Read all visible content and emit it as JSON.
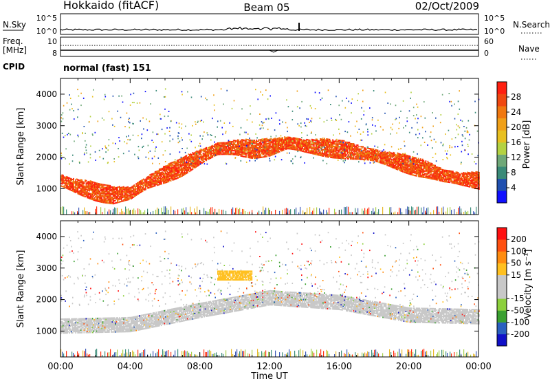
{
  "header": {
    "station": "Hokkaido (fitACF)",
    "beam": "Beam 05",
    "date": "02/Oct/2009"
  },
  "nsky": {
    "label": "N.Sky",
    "ticks": [
      "10^5",
      "10^0"
    ],
    "right_ticks": [
      "10^5",
      "10^0"
    ],
    "right_label": "N.Search"
  },
  "freq": {
    "label_top": "Freq.",
    "label_bottom": "[MHz]",
    "ticks": [
      "10",
      "8"
    ],
    "right_ticks": [
      "60",
      "0"
    ],
    "right_label": "Nave"
  },
  "cpid": {
    "label": "CPID",
    "value": "normal (fast) 151"
  },
  "colors": {
    "power_scale": [
      "#1010ff",
      "#2050b0",
      "#3a8a78",
      "#6fa878",
      "#b4d242",
      "#e8c020",
      "#f0a018",
      "#f07810",
      "#f04810",
      "#ff2010"
    ],
    "velocity_scale": [
      "#ff1010",
      "#ff5010",
      "#ff8c10",
      "#ffc020",
      "#c8c8c8",
      "#c8c8c8",
      "#8cd03c",
      "#3aa030",
      "#2a60c0",
      "#1010c8"
    ],
    "noise": [
      "#3c58b8",
      "#3f8f7c",
      "#a7d04c",
      "#e8b828",
      "#ff3010"
    ]
  },
  "chart_data": [
    {
      "type": "heatmap",
      "name": "Power",
      "ylabel": "Slant Range [km]",
      "xlabel": "",
      "x_ticks": [
        "00:00",
        "04:00",
        "08:00",
        "12:00",
        "16:00",
        "20:00",
        "00:00"
      ],
      "x_range_hours": [
        0,
        24
      ],
      "y_ticks": [
        1000,
        2000,
        3000,
        4000
      ],
      "y_range_km": [
        180,
        4500
      ],
      "colorbar": {
        "label": "Power [dB]",
        "ticks": [
          4,
          8,
          12,
          16,
          20,
          24,
          28
        ],
        "range": [
          0,
          32
        ]
      },
      "trace_center_km": [
        {
          "t": 0,
          "r": 1250
        },
        {
          "t": 1,
          "r": 1050
        },
        {
          "t": 2,
          "r": 900
        },
        {
          "t": 3,
          "r": 780
        },
        {
          "t": 4,
          "r": 850
        },
        {
          "t": 5,
          "r": 1200
        },
        {
          "t": 6,
          "r": 1450
        },
        {
          "t": 7,
          "r": 1700
        },
        {
          "t": 8,
          "r": 2000
        },
        {
          "t": 9,
          "r": 2250
        },
        {
          "t": 10,
          "r": 2300
        },
        {
          "t": 11,
          "r": 2250
        },
        {
          "t": 12,
          "r": 2300
        },
        {
          "t": 13,
          "r": 2450
        },
        {
          "t": 14,
          "r": 2350
        },
        {
          "t": 15,
          "r": 2300
        },
        {
          "t": 16,
          "r": 2250
        },
        {
          "t": 17,
          "r": 2150
        },
        {
          "t": 18,
          "r": 2050
        },
        {
          "t": 19,
          "r": 1900
        },
        {
          "t": 20,
          "r": 1750
        },
        {
          "t": 21,
          "r": 1600
        },
        {
          "t": 22,
          "r": 1400
        },
        {
          "t": 23,
          "r": 1300
        },
        {
          "t": 24,
          "r": 1250
        }
      ]
    },
    {
      "type": "heatmap",
      "name": "Velocity",
      "ylabel": "Slant Range [km]",
      "xlabel": "Time UT",
      "x_ticks": [
        "00:00",
        "04:00",
        "08:00",
        "12:00",
        "16:00",
        "20:00",
        "00:00"
      ],
      "x_range_hours": [
        0,
        24
      ],
      "y_ticks": [
        1000,
        2000,
        3000,
        4000
      ],
      "y_range_km": [
        180,
        4500
      ],
      "colorbar": {
        "label": "Velocity [m s⁻¹]",
        "ticks": [
          200,
          100,
          50,
          15,
          -15,
          -50,
          -100,
          -200
        ]
      },
      "ground_scatter_center_km": [
        {
          "t": 0,
          "r": 1150
        },
        {
          "t": 4,
          "r": 1200
        },
        {
          "t": 8,
          "r": 1650
        },
        {
          "t": 12,
          "r": 2050
        },
        {
          "t": 16,
          "r": 1900
        },
        {
          "t": 20,
          "r": 1500
        },
        {
          "t": 24,
          "r": 1450
        }
      ]
    }
  ]
}
